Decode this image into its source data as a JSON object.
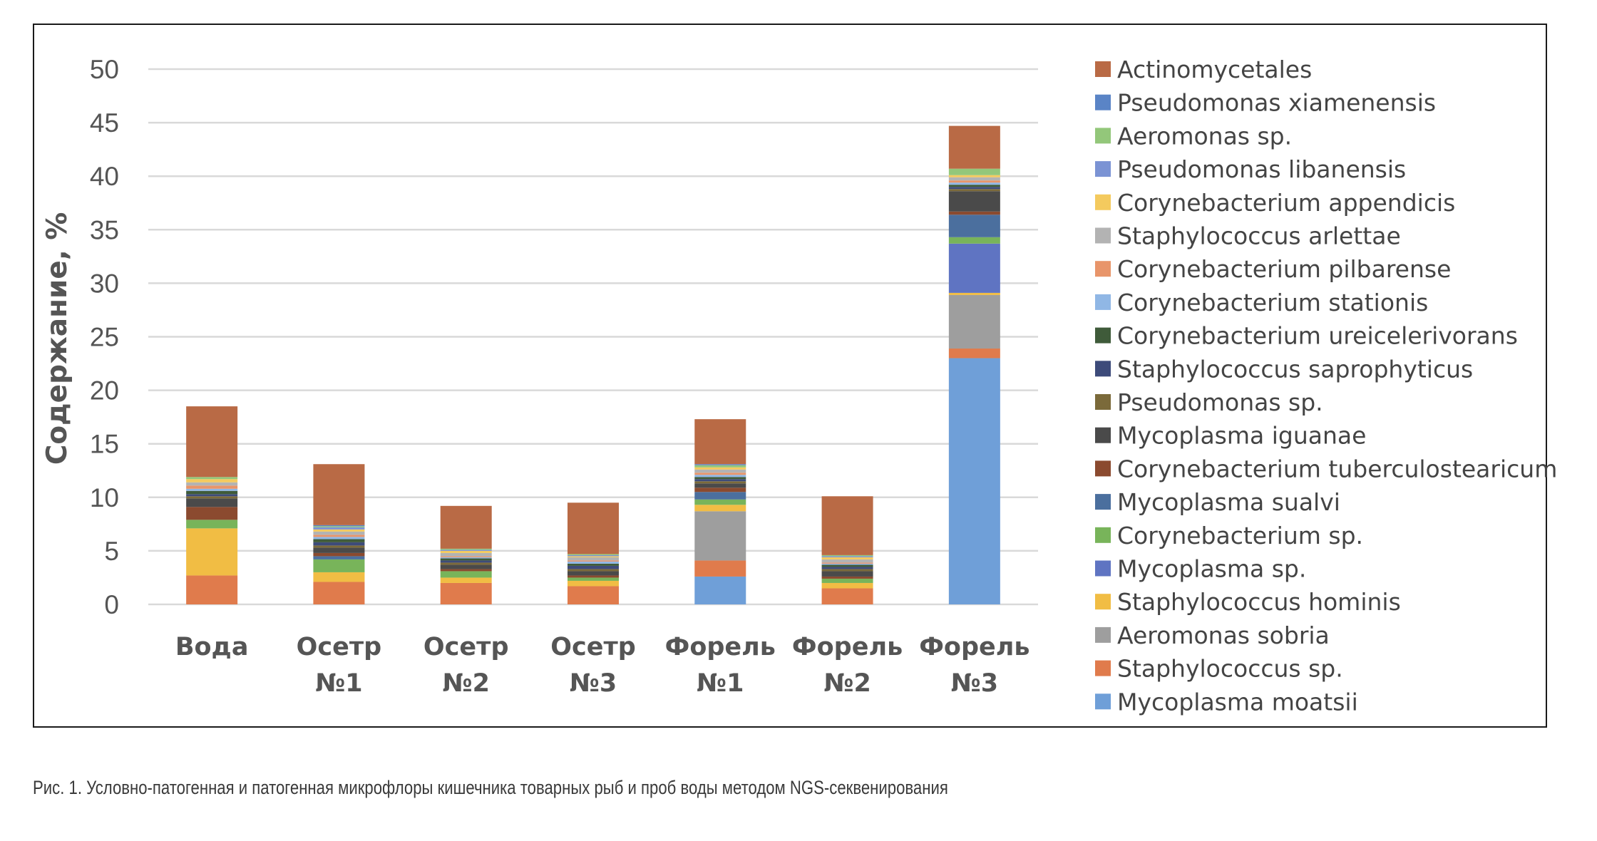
{
  "caption": "Рис. 1. Условно-патогенная и патогенная микрофлоры кишечника товарных рыб и проб воды методом NGS-секвенирования",
  "chart_data": {
    "type": "bar",
    "stacked": true,
    "ylabel": "Содержание, %",
    "ylim": [
      0,
      50
    ],
    "yticks": [
      0,
      5,
      10,
      15,
      20,
      25,
      30,
      35,
      40,
      45,
      50
    ],
    "grid": true,
    "legend_position": "right",
    "categories": [
      [
        "Вода"
      ],
      [
        "Осетр",
        "№1"
      ],
      [
        "Осетр",
        "№2"
      ],
      [
        "Осетр",
        "№3"
      ],
      [
        "Форель",
        "№1"
      ],
      [
        "Форель",
        "№2"
      ],
      [
        "Форель",
        "№3"
      ]
    ],
    "series": [
      {
        "name": "Mycoplasma moatsii",
        "color": "#6f9fd8",
        "values": [
          0,
          0,
          0,
          0,
          2.6,
          0,
          23.0
        ]
      },
      {
        "name": "Staphylococcus sp.",
        "color": "#e07b4c",
        "values": [
          2.7,
          2.1,
          2.0,
          1.7,
          1.5,
          1.5,
          0.9
        ]
      },
      {
        "name": "Aeromonas sobria",
        "color": "#9e9e9e",
        "values": [
          0,
          0,
          0,
          0,
          4.6,
          0,
          5.0
        ]
      },
      {
        "name": "Staphylococcus hominis",
        "color": "#f1bd44",
        "values": [
          4.4,
          0.9,
          0.5,
          0.5,
          0.6,
          0.5,
          0.2
        ]
      },
      {
        "name": "Mycoplasma sp.",
        "color": "#5f74c2",
        "values": [
          0,
          0,
          0,
          0,
          0,
          0,
          4.6
        ]
      },
      {
        "name": "Corynebacterium sp.",
        "color": "#78b45a",
        "values": [
          0.8,
          1.2,
          0.6,
          0.3,
          0.5,
          0.4,
          0.6
        ]
      },
      {
        "name": "Mycoplasma sualvi",
        "color": "#4b6f9e",
        "values": [
          0,
          0.3,
          0,
          0,
          0.7,
          0,
          2.1
        ]
      },
      {
        "name": "Corynebacterium tuberculostearicum",
        "color": "#8b4a2f",
        "values": [
          1.2,
          0.3,
          0.2,
          0.2,
          0.4,
          0.2,
          0.3
        ]
      },
      {
        "name": "Mycoplasma iguanae",
        "color": "#4a4a4a",
        "values": [
          0.8,
          0.5,
          0.4,
          0.4,
          0.4,
          0.5,
          1.9
        ]
      },
      {
        "name": "Pseudomonas sp.",
        "color": "#7b6a3a",
        "values": [
          0.2,
          0.2,
          0.2,
          0.2,
          0.2,
          0.2,
          0.2
        ]
      },
      {
        "name": "Staphylococcus saprophyticus",
        "color": "#3d4b7a",
        "values": [
          0.2,
          0.3,
          0.2,
          0.3,
          0.2,
          0.2,
          0.2
        ]
      },
      {
        "name": "Corynebacterium ureicelerivorans",
        "color": "#3f5b3a",
        "values": [
          0.3,
          0.3,
          0.2,
          0.2,
          0.2,
          0.2,
          0.2
        ]
      },
      {
        "name": "Corynebacterium stationis",
        "color": "#90b7e5",
        "values": [
          0.2,
          0.2,
          0.1,
          0.2,
          0.2,
          0.1,
          0.2
        ]
      },
      {
        "name": "Corynebacterium pilbarense",
        "color": "#e8956a",
        "values": [
          0.3,
          0.2,
          0.1,
          0.1,
          0.2,
          0.1,
          0.2
        ]
      },
      {
        "name": "Staphylococcus arlettae",
        "color": "#b3b3b3",
        "values": [
          0.3,
          0.3,
          0.3,
          0.3,
          0.3,
          0.3,
          0.3
        ]
      },
      {
        "name": "Corynebacterium appendicis",
        "color": "#f4ca5e",
        "values": [
          0.3,
          0.2,
          0.2,
          0.1,
          0.2,
          0.2,
          0.2
        ]
      },
      {
        "name": "Pseudomonas libanensis",
        "color": "#7b93d4",
        "values": [
          0,
          0.2,
          0.1,
          0.1,
          0,
          0.1,
          0
        ]
      },
      {
        "name": "Aeromonas sp.",
        "color": "#93c77a",
        "values": [
          0.2,
          0.1,
          0.1,
          0.1,
          0.2,
          0.1,
          0.6
        ]
      },
      {
        "name": "Pseudomonas xiamenensis",
        "color": "#5a84c6",
        "values": [
          0,
          0.1,
          0,
          0,
          0.1,
          0,
          0
        ]
      },
      {
        "name": "Actinomycetales",
        "color": "#b96a45",
        "values": [
          6.6,
          5.7,
          4.0,
          4.8,
          4.2,
          5.5,
          4.0
        ]
      }
    ]
  }
}
